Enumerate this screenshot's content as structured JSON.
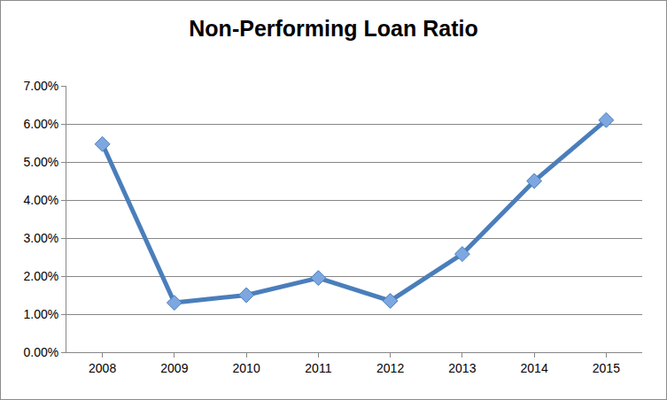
{
  "chart_data": {
    "type": "line",
    "title": "Non-Performing Loan Ratio",
    "categories": [
      "2008",
      "2009",
      "2010",
      "2011",
      "2012",
      "2013",
      "2014",
      "2015"
    ],
    "values": [
      5.47,
      1.3,
      1.5,
      1.95,
      1.35,
      2.58,
      4.5,
      6.1
    ],
    "color": "#4a7ebb",
    "marker": "diamond",
    "line_style": "solid",
    "ylim": [
      0,
      7
    ],
    "yticks": [
      {
        "value": 0,
        "label": "0.00%"
      },
      {
        "value": 1,
        "label": "1.00%"
      },
      {
        "value": 2,
        "label": "2.00%"
      },
      {
        "value": 3,
        "label": "3.00%"
      },
      {
        "value": 4,
        "label": "4.00%"
      },
      {
        "value": 5,
        "label": "5.00%"
      },
      {
        "value": 6,
        "label": "6.00%"
      },
      {
        "value": 7,
        "label": "7.00%"
      }
    ],
    "grid": true
  }
}
